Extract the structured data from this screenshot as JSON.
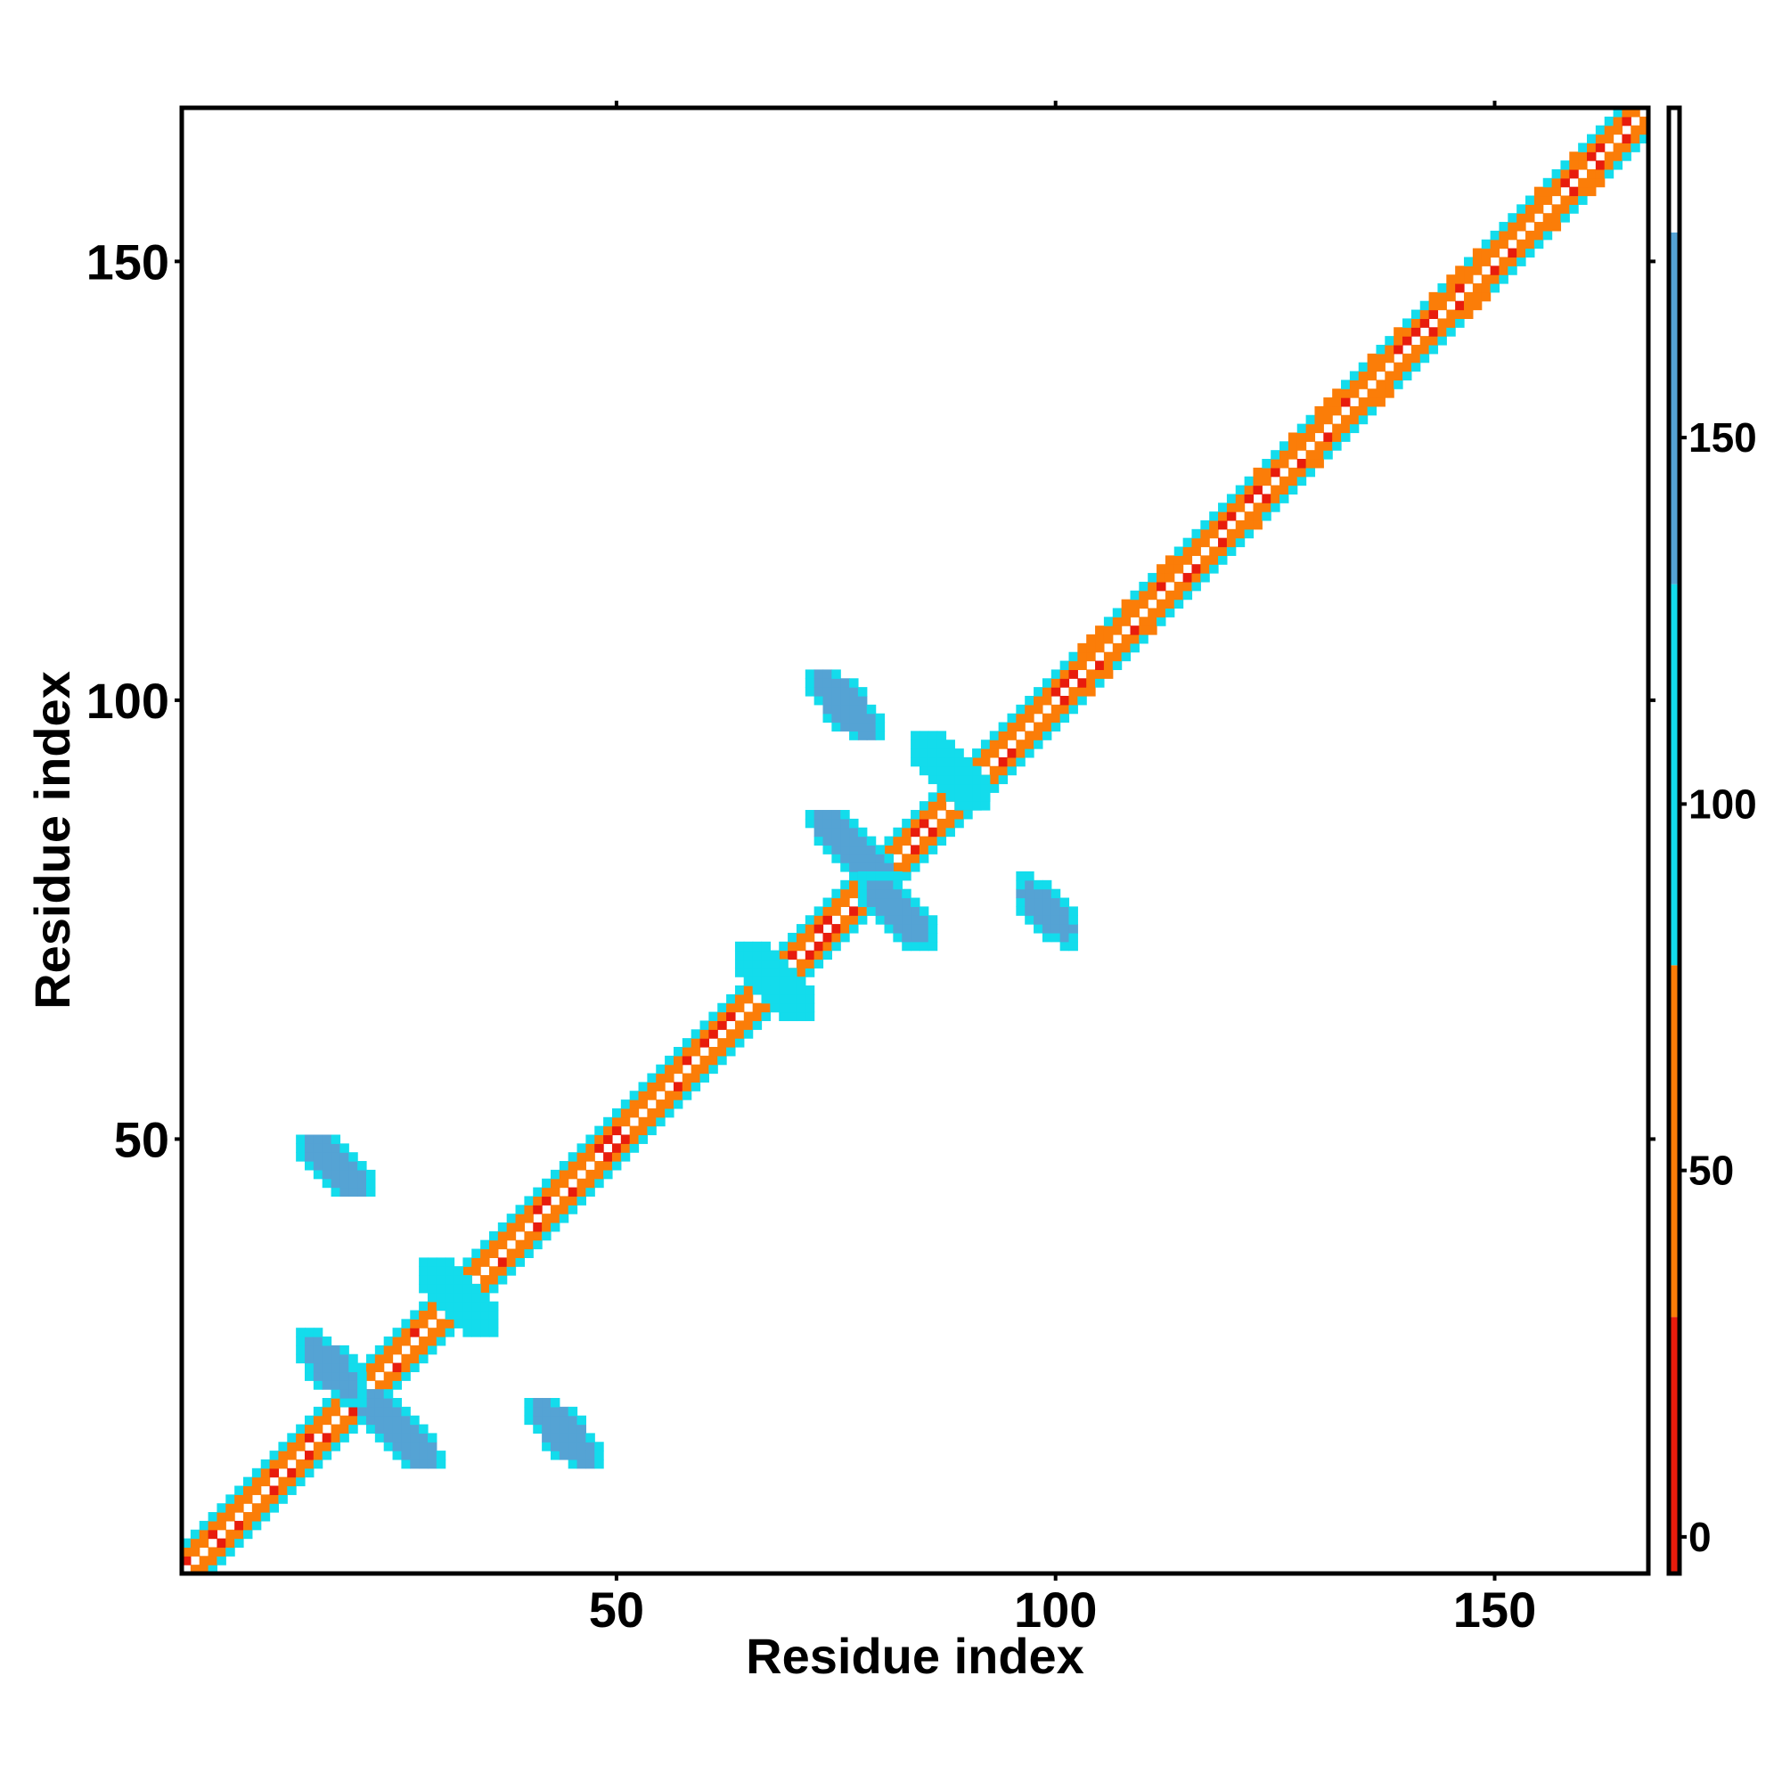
{
  "chart_data": {
    "type": "heatmap",
    "title": "",
    "xlabel": "Residue index",
    "ylabel": "Residue index",
    "xlim": [
      1,
      167
    ],
    "ylim": [
      1,
      167
    ],
    "x_ticks": [
      50,
      100,
      150
    ],
    "y_ticks": [
      50,
      100,
      150
    ],
    "grid": false,
    "legend": "colorbar right",
    "colorbar": {
      "ticks": [
        0,
        50,
        100,
        150
      ],
      "range": [
        -5,
        195
      ],
      "bands": [
        {
          "from": -5,
          "to": 30,
          "color": "#e81c0c"
        },
        {
          "from": 30,
          "to": 78,
          "color": "#fb7d08"
        },
        {
          "from": 78,
          "to": 130,
          "color": "#13dcec"
        },
        {
          "from": 130,
          "to": 178,
          "color": "#55a3d4"
        },
        {
          "from": 178,
          "to": 195,
          "color": "#ffffff"
        }
      ]
    },
    "diagonal": {
      "residues": [
        1,
        167
      ],
      "band_width": 3,
      "colors": [
        "#fb7d08",
        "#e81c0c",
        "#13dcec"
      ]
    },
    "contact_patches": [
      {
        "x": [
          20,
          30
        ],
        "y": [
          13,
          21
        ],
        "color": "#55a3d4"
      },
      {
        "x": [
          14,
          21
        ],
        "y": [
          20,
          28
        ],
        "color": "#55a3d4"
      },
      {
        "x": [
          40,
          48
        ],
        "y": [
          13,
          20
        ],
        "color": "#55a3d4"
      },
      {
        "x": [
          14,
          22
        ],
        "y": [
          44,
          50
        ],
        "color": "#55a3d4"
      },
      {
        "x": [
          64,
          72
        ],
        "y": [
          64,
          72
        ],
        "color": "#13dcec"
      },
      {
        "x": [
          72,
          82
        ],
        "y": [
          79,
          87
        ],
        "color": "#55a3d4"
      },
      {
        "x": [
          78,
          86
        ],
        "y": [
          72,
          80
        ],
        "color": "#55a3d4"
      },
      {
        "x": [
          96,
          102
        ],
        "y": [
          72,
          80
        ],
        "color": "#55a3d4"
      },
      {
        "x": [
          72,
          80
        ],
        "y": [
          96,
          103
        ],
        "color": "#55a3d4"
      },
      {
        "x": [
          84,
          92
        ],
        "y": [
          88,
          96
        ],
        "color": "#13dcec"
      },
      {
        "x": [
          28,
          36
        ],
        "y": [
          28,
          36
        ],
        "color": "#13dcec"
      }
    ]
  }
}
